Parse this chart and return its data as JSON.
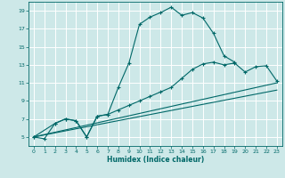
{
  "xlabel": "Humidex (Indice chaleur)",
  "bg_color": "#cde8e8",
  "grid_color": "#ffffff",
  "line_color": "#006868",
  "xlim": [
    -0.5,
    23.5
  ],
  "ylim": [
    4.0,
    20.0
  ],
  "xticks": [
    0,
    1,
    2,
    3,
    4,
    5,
    6,
    7,
    8,
    9,
    10,
    11,
    12,
    13,
    14,
    15,
    16,
    17,
    18,
    19,
    20,
    21,
    22,
    23
  ],
  "yticks": [
    5,
    7,
    9,
    11,
    13,
    15,
    17,
    19
  ],
  "line1_x": [
    0,
    1,
    2,
    3,
    4,
    5,
    6,
    7,
    8,
    9,
    10,
    11,
    12,
    13,
    14,
    15,
    16,
    17,
    18,
    19
  ],
  "line1_y": [
    5,
    4.8,
    6.5,
    7.0,
    6.8,
    5.0,
    7.3,
    7.5,
    10.5,
    13.2,
    17.5,
    18.3,
    18.8,
    19.4,
    18.5,
    18.8,
    18.2,
    16.5,
    14.0,
    13.3
  ],
  "line2_x": [
    0,
    2,
    3,
    4,
    5,
    6,
    7,
    8,
    9,
    10,
    11,
    12,
    13,
    14,
    15,
    16,
    17,
    18,
    19,
    20,
    21,
    22,
    23
  ],
  "line2_y": [
    5,
    6.5,
    7.0,
    6.8,
    5.0,
    7.3,
    7.5,
    8.0,
    8.5,
    9.0,
    9.5,
    10.0,
    10.5,
    11.5,
    12.5,
    13.1,
    13.3,
    13.0,
    13.2,
    12.2,
    12.8,
    12.9,
    11.2
  ],
  "line3_x": [
    0,
    23
  ],
  "line3_y": [
    5,
    11.0
  ],
  "line4_x": [
    0,
    23
  ],
  "line4_y": [
    5,
    10.2
  ],
  "figsize": [
    3.2,
    2.0
  ],
  "dpi": 100
}
